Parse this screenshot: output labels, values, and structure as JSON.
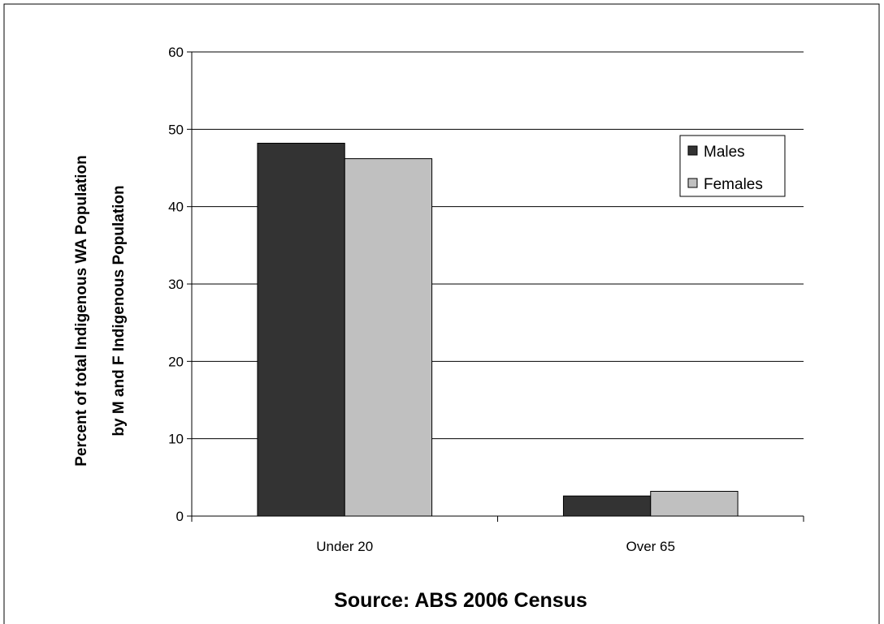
{
  "chart_data": {
    "type": "bar",
    "categories": [
      "Under 20",
      "Over 65"
    ],
    "series": [
      {
        "name": "Males",
        "values": [
          48.2,
          2.6
        ],
        "color": "#333333"
      },
      {
        "name": "Females",
        "values": [
          46.2,
          3.2
        ],
        "color": "#c0c0c0"
      }
    ],
    "title": "",
    "xlabel": "Source: ABS 2006 Census",
    "ylabel": [
      "Percent of total Indigenous WA Population",
      "by M and F Indigenous Population"
    ],
    "ylim": [
      0,
      60
    ],
    "yticks": [
      0,
      10,
      20,
      30,
      40,
      50,
      60
    ],
    "grid": true,
    "legend_position": "top-right"
  }
}
